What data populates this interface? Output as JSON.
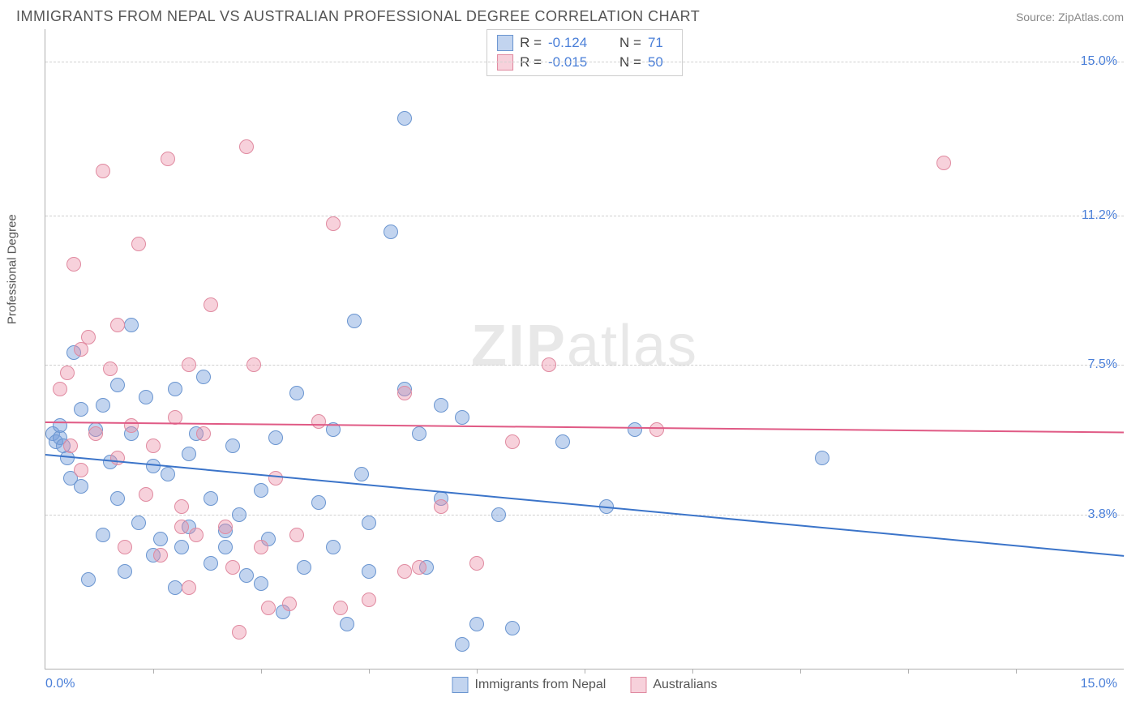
{
  "header": {
    "title": "IMMIGRANTS FROM NEPAL VS AUSTRALIAN PROFESSIONAL DEGREE CORRELATION CHART",
    "source": "Source: ZipAtlas.com"
  },
  "chart": {
    "type": "scatter",
    "ylabel": "Professional Degree",
    "watermark_bold": "ZIP",
    "watermark_rest": "atlas",
    "xlim": [
      0,
      15
    ],
    "ylim": [
      0,
      15.8
    ],
    "xtick_labels": [
      "0.0%",
      "15.0%"
    ],
    "xtick_marks": [
      1.5,
      3.0,
      4.5,
      6.0,
      7.5,
      9.0,
      10.5,
      12.0,
      13.5
    ],
    "yticks": [
      {
        "v": 3.8,
        "label": "3.8%"
      },
      {
        "v": 7.5,
        "label": "7.5%"
      },
      {
        "v": 11.2,
        "label": "11.2%"
      },
      {
        "v": 15.0,
        "label": "15.0%"
      }
    ],
    "grid_color": "#d0d0d0",
    "background_color": "#ffffff",
    "point_radius": 9,
    "series": [
      {
        "name": "Immigrants from Nepal",
        "fill": "rgba(120,160,220,0.45)",
        "stroke": "#6a95d0",
        "r_value": "-0.124",
        "n_value": "71",
        "trend": {
          "y_start": 5.3,
          "y_end": 2.8,
          "color": "#3b74c9"
        },
        "points": [
          [
            0.1,
            5.8
          ],
          [
            0.15,
            5.6
          ],
          [
            0.2,
            5.7
          ],
          [
            0.2,
            6.0
          ],
          [
            0.25,
            5.5
          ],
          [
            0.3,
            5.2
          ],
          [
            0.35,
            4.7
          ],
          [
            0.4,
            7.8
          ],
          [
            0.5,
            6.4
          ],
          [
            0.5,
            4.5
          ],
          [
            0.6,
            2.2
          ],
          [
            0.7,
            5.9
          ],
          [
            0.8,
            6.5
          ],
          [
            0.8,
            3.3
          ],
          [
            0.9,
            5.1
          ],
          [
            1.0,
            7.0
          ],
          [
            1.0,
            4.2
          ],
          [
            1.1,
            2.4
          ],
          [
            1.2,
            5.8
          ],
          [
            1.2,
            8.5
          ],
          [
            1.3,
            3.6
          ],
          [
            1.4,
            6.7
          ],
          [
            1.5,
            5.0
          ],
          [
            1.5,
            2.8
          ],
          [
            1.6,
            3.2
          ],
          [
            1.7,
            4.8
          ],
          [
            1.8,
            6.9
          ],
          [
            1.8,
            2.0
          ],
          [
            1.9,
            3.0
          ],
          [
            2.0,
            5.3
          ],
          [
            2.0,
            3.5
          ],
          [
            2.1,
            5.8
          ],
          [
            2.2,
            7.2
          ],
          [
            2.3,
            2.6
          ],
          [
            2.3,
            4.2
          ],
          [
            2.5,
            3.4
          ],
          [
            2.5,
            3.0
          ],
          [
            2.6,
            5.5
          ],
          [
            2.7,
            3.8
          ],
          [
            2.8,
            2.3
          ],
          [
            3.0,
            4.4
          ],
          [
            3.0,
            2.1
          ],
          [
            3.1,
            3.2
          ],
          [
            3.2,
            5.7
          ],
          [
            3.3,
            1.4
          ],
          [
            3.5,
            6.8
          ],
          [
            3.6,
            2.5
          ],
          [
            3.8,
            4.1
          ],
          [
            4.0,
            3.0
          ],
          [
            4.0,
            5.9
          ],
          [
            4.2,
            1.1
          ],
          [
            4.3,
            8.6
          ],
          [
            4.5,
            3.6
          ],
          [
            4.5,
            2.4
          ],
          [
            4.8,
            10.8
          ],
          [
            5.0,
            6.9
          ],
          [
            5.0,
            13.6
          ],
          [
            5.2,
            5.8
          ],
          [
            5.3,
            2.5
          ],
          [
            5.5,
            4.2
          ],
          [
            5.5,
            6.5
          ],
          [
            5.8,
            0.6
          ],
          [
            5.8,
            6.2
          ],
          [
            6.0,
            1.1
          ],
          [
            6.3,
            3.8
          ],
          [
            6.5,
            1.0
          ],
          [
            7.2,
            5.6
          ],
          [
            7.8,
            4.0
          ],
          [
            8.2,
            5.9
          ],
          [
            10.8,
            5.2
          ],
          [
            4.4,
            4.8
          ]
        ]
      },
      {
        "name": "Australians",
        "fill": "rgba(235,140,165,0.40)",
        "stroke": "#e08aa0",
        "r_value": "-0.015",
        "n_value": "50",
        "trend": {
          "y_start": 6.1,
          "y_end": 5.85,
          "color": "#e05a85"
        },
        "points": [
          [
            0.2,
            6.9
          ],
          [
            0.3,
            7.3
          ],
          [
            0.35,
            5.5
          ],
          [
            0.4,
            10.0
          ],
          [
            0.5,
            7.9
          ],
          [
            0.5,
            4.9
          ],
          [
            0.6,
            8.2
          ],
          [
            0.7,
            5.8
          ],
          [
            0.8,
            12.3
          ],
          [
            0.9,
            7.4
          ],
          [
            1.0,
            5.2
          ],
          [
            1.0,
            8.5
          ],
          [
            1.1,
            3.0
          ],
          [
            1.2,
            6.0
          ],
          [
            1.3,
            10.5
          ],
          [
            1.4,
            4.3
          ],
          [
            1.5,
            5.5
          ],
          [
            1.6,
            2.8
          ],
          [
            1.7,
            12.6
          ],
          [
            1.8,
            6.2
          ],
          [
            1.9,
            4.0
          ],
          [
            2.0,
            7.5
          ],
          [
            2.0,
            2.0
          ],
          [
            2.1,
            3.3
          ],
          [
            2.2,
            5.8
          ],
          [
            2.3,
            9.0
          ],
          [
            2.5,
            3.5
          ],
          [
            2.6,
            2.5
          ],
          [
            2.7,
            0.9
          ],
          [
            2.8,
            12.9
          ],
          [
            2.9,
            7.5
          ],
          [
            3.0,
            3.0
          ],
          [
            3.1,
            1.5
          ],
          [
            3.2,
            4.7
          ],
          [
            3.4,
            1.6
          ],
          [
            3.8,
            6.1
          ],
          [
            4.0,
            11.0
          ],
          [
            4.1,
            1.5
          ],
          [
            4.5,
            1.7
          ],
          [
            5.0,
            2.4
          ],
          [
            5.0,
            6.8
          ],
          [
            5.2,
            2.5
          ],
          [
            5.5,
            4.0
          ],
          [
            6.0,
            2.6
          ],
          [
            6.5,
            5.6
          ],
          [
            7.0,
            7.5
          ],
          [
            8.5,
            5.9
          ],
          [
            12.5,
            12.5
          ],
          [
            3.5,
            3.3
          ],
          [
            1.9,
            3.5
          ]
        ]
      }
    ]
  },
  "legend_bottom": {
    "item1": "Immigrants from Nepal",
    "item2": "Australians"
  }
}
